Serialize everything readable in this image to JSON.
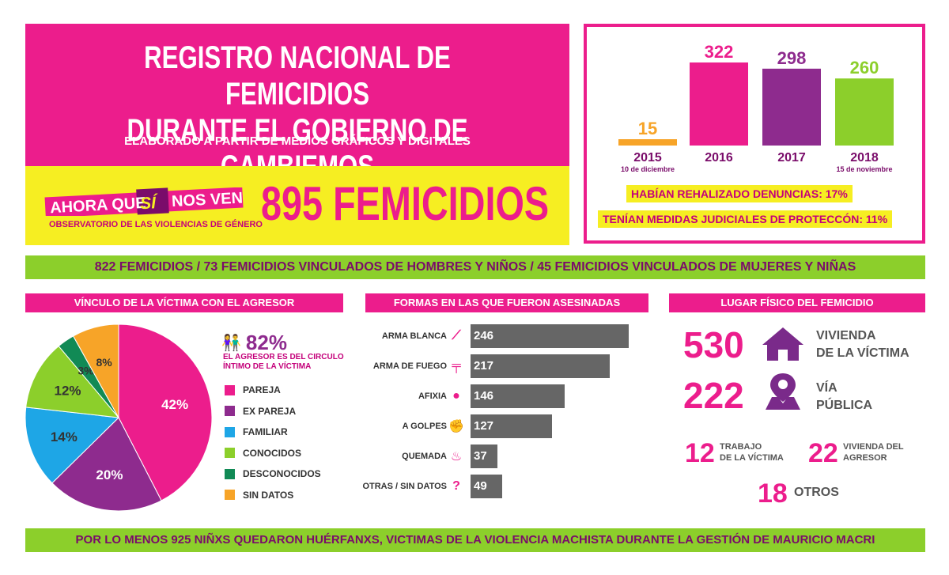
{
  "header": {
    "title_line1": "REGISTRO NACIONAL DE FEMICIDIOS",
    "title_line2": "DURANTE EL GOBIERNO DE CAMBIEMOS",
    "subtitle": "ELABORADO A PARTIR DE MEDIOS GRÁFICOS Y DIGITALES"
  },
  "brand": {
    "logo_text1": "AHORA QUE",
    "logo_text2": "SÍ",
    "logo_text3": "NOS VEN",
    "observatory": "OBSERVATORIO DE LAS VIOLENCIAS DE GÉNERO"
  },
  "total": "895 FEMICIDIOS",
  "notes": {
    "denuncias": "HABÍAN REHALIZADO DENUNCIAS: 17%",
    "medidas": "TENÍAN MEDIDAS JUDICIALES DE PROTECCÓN: 11%"
  },
  "breakdown": "822 FEMICIDIOS / 73 FEMICIDIOS VINCULADOS DE HOMBRES Y NIÑOS / 45 FEMICIDIOS VINCULADOS DE MUJERES Y NIÑAS",
  "sections": {
    "vinculo": "VÍNCULO DE LA VÍCTIMA CON EL AGRESOR",
    "formas": "FORMAS EN LAS QUE FUERON ASESINADAS",
    "lugar": "LUGAR FÍSICO DEL FEMICIDIO"
  },
  "circle": {
    "pct": "82%",
    "text1": "EL AGRESOR ES DEL CIRCULO",
    "text2": "ÍNTIMO DE LA VÍCTIMA"
  },
  "places": {
    "vivienda_num": "530",
    "vivienda_l1": "VIVIENDA",
    "vivienda_l2": "DE LA VÍCTIMA",
    "via_num": "222",
    "via_l1": "VÍA",
    "via_l2": "PÚBLICA",
    "trabajo_num": "12",
    "trabajo_l1": "TRABAJO",
    "trabajo_l2": "DE LA VÍCTIMA",
    "agresor_num": "22",
    "agresor_l1": "VIVIENDA DEL",
    "agresor_l2": "AGRESOR",
    "otros_num": "18",
    "otros_l": "OTROS"
  },
  "footer": "POR LO MENOS 925 NIÑXS QUEDARON HUÉRFANXS, VICTIMAS DE LA VIOLENCIA MACHISTA DURANTE LA GESTIÓN DE MAURICIO MACRI",
  "colors": {
    "magenta": "#ec1d8c",
    "purple": "#8e2b8e",
    "blue": "#1ea6e6",
    "green": "#8ccf2b",
    "darkgreen": "#118a55",
    "orange": "#f7a428",
    "gray": "#666666",
    "yellow": "#f6ee22"
  },
  "chart_data": [
    {
      "type": "bar",
      "categories": [
        "2015",
        "2016",
        "2017",
        "2018"
      ],
      "sublabels": [
        "10 de diciembre",
        "",
        "",
        "15 de noviembre"
      ],
      "values": [
        15,
        322,
        298,
        260
      ],
      "colors": [
        "#f7a428",
        "#ec1d8c",
        "#8e2b8e",
        "#8ccf2b"
      ],
      "ylim": [
        0,
        322
      ]
    },
    {
      "type": "pie",
      "title": "VÍNCULO DE LA VÍCTIMA CON EL AGRESOR",
      "labels": [
        "PAREJA",
        "EX PAREJA",
        "FAMILIAR",
        "CONOCIDOS",
        "DESCONOCIDOS",
        "SIN DATOS"
      ],
      "values": [
        42,
        20,
        14,
        12,
        3,
        8
      ],
      "value_labels": [
        "42%",
        "20%",
        "14%",
        "12%",
        "3%",
        "8%"
      ],
      "colors": [
        "#ec1d8c",
        "#8e2b8e",
        "#1ea6e6",
        "#8ccf2b",
        "#118a55",
        "#f7a428"
      ]
    },
    {
      "type": "bar",
      "orientation": "horizontal",
      "title": "FORMAS EN LAS QUE FUERON ASESINADAS",
      "categories": [
        "ARMA BLANCA",
        "ARMA DE FUEGO",
        "AFIXIA",
        "A GOLPES",
        "QUEMADA",
        "OTRAS / SIN DATOS"
      ],
      "icons": [
        "knife-icon",
        "gun-icon",
        "asphyxia-icon",
        "fist-icon",
        "fire-icon",
        "question-icon"
      ],
      "icon_glyphs": [
        "⟋",
        "╤",
        "●",
        "✊",
        "♨",
        "?"
      ],
      "values": [
        246,
        217,
        146,
        127,
        37,
        49
      ],
      "color": "#666666",
      "xlim": [
        0,
        246
      ]
    }
  ]
}
